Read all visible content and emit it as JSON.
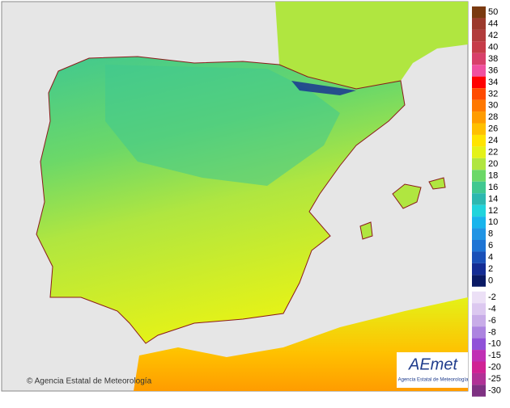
{
  "map": {
    "credit": "© Agencia Estatal de Meteorología",
    "logo": {
      "name": "AEmet",
      "subtitle": "Agencia Estatal de Meteorología"
    }
  },
  "legend": {
    "items": [
      {
        "label": "50",
        "color": "#7a3a10"
      },
      {
        "label": "44",
        "color": "#9c3a2c"
      },
      {
        "label": "42",
        "color": "#b23c3c"
      },
      {
        "label": "40",
        "color": "#c63c48"
      },
      {
        "label": "38",
        "color": "#d8406a"
      },
      {
        "label": "36",
        "color": "#f050a0"
      },
      {
        "label": "34",
        "color": "#ff0000"
      },
      {
        "label": "32",
        "color": "#ff4a00"
      },
      {
        "label": "30",
        "color": "#ff7800"
      },
      {
        "label": "28",
        "color": "#ff9c00"
      },
      {
        "label": "26",
        "color": "#ffc000"
      },
      {
        "label": "24",
        "color": "#ffe400"
      },
      {
        "label": "22",
        "color": "#e4f218"
      },
      {
        "label": "20",
        "color": "#b0e640"
      },
      {
        "label": "18",
        "color": "#6cd868"
      },
      {
        "label": "16",
        "color": "#40c890"
      },
      {
        "label": "14",
        "color": "#2cb8b0"
      },
      {
        "label": "12",
        "color": "#20d4dc"
      },
      {
        "label": "10",
        "color": "#18b4ec"
      },
      {
        "label": "8",
        "color": "#2094e4"
      },
      {
        "label": "6",
        "color": "#1e74d4"
      },
      {
        "label": "4",
        "color": "#1a50b8"
      },
      {
        "label": "2",
        "color": "#142c94"
      },
      {
        "label": "0",
        "color": "#0a1a64"
      },
      {
        "label": "-2",
        "color": "#ece0f6"
      },
      {
        "label": "-4",
        "color": "#dcc8f0"
      },
      {
        "label": "-6",
        "color": "#c8ace8"
      },
      {
        "label": "-8",
        "color": "#ac84e0"
      },
      {
        "label": "-10",
        "color": "#9052d8"
      },
      {
        "label": "-15",
        "color": "#c030b4"
      },
      {
        "label": "-20",
        "color": "#d02294"
      },
      {
        "label": "-25",
        "color": "#b03296"
      },
      {
        "label": "-30",
        "color": "#7e3282"
      }
    ]
  }
}
